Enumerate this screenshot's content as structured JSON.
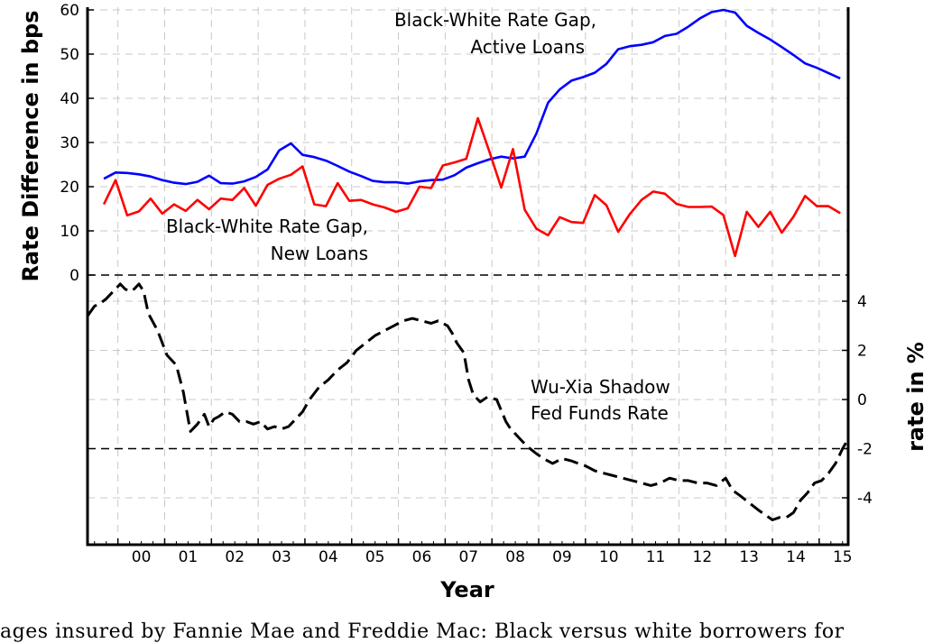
{
  "chart_data": {
    "type": "line",
    "xlabel": "Year",
    "x_tick_labels": [
      "00",
      "01",
      "02",
      "03",
      "04",
      "05",
      "06",
      "07",
      "08",
      "09",
      "10",
      "11",
      "12",
      "13",
      "14",
      "15"
    ],
    "xlim": [
      1999.35,
      2015.62
    ],
    "left_axis": {
      "label": "Rate Difference in bps",
      "ylim": [
        0,
        60
      ],
      "ticks": [
        0,
        10,
        20,
        30,
        40,
        50,
        60
      ]
    },
    "right_axis": {
      "label": "rate in %",
      "ylim": [
        -5.5,
        4.5
      ],
      "ticks": [
        4,
        2,
        0,
        -2,
        -4
      ]
    },
    "grid": true,
    "series": [
      {
        "name": "Black-White Rate Gap, Active Loans",
        "axis": "left",
        "color": "#0000ff",
        "x": [
          1999.7,
          1999.95,
          2000.2,
          2000.45,
          2000.7,
          2000.95,
          2001.2,
          2001.45,
          2001.7,
          2001.95,
          2002.2,
          2002.45,
          2002.7,
          2002.95,
          2003.2,
          2003.45,
          2003.7,
          2003.95,
          2004.2,
          2004.45,
          2004.7,
          2004.95,
          2005.2,
          2005.45,
          2005.7,
          2005.95,
          2006.2,
          2006.45,
          2006.7,
          2006.95,
          2007.2,
          2007.45,
          2007.7,
          2007.95,
          2008.2,
          2008.45,
          2008.7,
          2008.95,
          2009.2,
          2009.45,
          2009.7,
          2009.95,
          2010.2,
          2010.45,
          2010.7,
          2010.95,
          2011.2,
          2011.45,
          2011.7,
          2011.95,
          2012.2,
          2012.45,
          2012.7,
          2012.95,
          2013.2,
          2013.45,
          2013.7,
          2013.95,
          2014.2,
          2014.45,
          2014.7,
          2014.95,
          2015.2,
          2015.45
        ],
        "y": [
          21.8,
          23.2,
          23.1,
          22.8,
          22.3,
          21.5,
          20.9,
          20.6,
          21.1,
          22.5,
          20.8,
          20.7,
          21.2,
          22.2,
          23.9,
          28.2,
          29.8,
          27.2,
          26.7,
          25.9,
          24.7,
          23.4,
          22.4,
          21.3,
          21.0,
          21.0,
          20.7,
          21.2,
          21.5,
          21.6,
          22.6,
          24.3,
          25.3,
          26.2,
          26.8,
          26.4,
          26.8,
          32.0,
          39.0,
          42.0,
          44.0,
          44.8,
          45.8,
          47.8,
          51.1,
          51.8,
          52.1,
          52.7,
          54.1,
          54.6,
          56.2,
          58.1,
          59.5,
          60.0,
          59.4,
          56.4,
          54.8,
          53.3,
          51.6,
          49.8,
          47.9,
          46.9,
          45.7,
          44.5
        ]
      },
      {
        "name": "Black-White Rate Gap, New Loans",
        "axis": "left",
        "color": "#ff0000",
        "x": [
          1999.7,
          1999.95,
          2000.2,
          2000.45,
          2000.7,
          2000.95,
          2001.2,
          2001.45,
          2001.7,
          2001.95,
          2002.2,
          2002.45,
          2002.7,
          2002.95,
          2003.2,
          2003.45,
          2003.7,
          2003.95,
          2004.2,
          2004.45,
          2004.7,
          2004.95,
          2005.2,
          2005.45,
          2005.7,
          2005.95,
          2006.2,
          2006.45,
          2006.7,
          2006.95,
          2007.2,
          2007.45,
          2007.7,
          2007.95,
          2008.2,
          2008.45,
          2008.7,
          2008.95,
          2009.2,
          2009.45,
          2009.7,
          2009.95,
          2010.2,
          2010.45,
          2010.7,
          2010.95,
          2011.2,
          2011.45,
          2011.7,
          2011.95,
          2012.2,
          2012.45,
          2012.7,
          2012.95,
          2013.2,
          2013.45,
          2013.7,
          2013.95,
          2014.2,
          2014.45,
          2014.7,
          2014.95,
          2015.2,
          2015.45
        ],
        "y": [
          16.0,
          21.5,
          13.5,
          14.4,
          17.3,
          13.9,
          16.0,
          14.5,
          17.0,
          14.9,
          17.3,
          17.0,
          19.7,
          15.7,
          20.4,
          21.8,
          22.7,
          24.6,
          16.0,
          15.6,
          20.8,
          16.8,
          17.0,
          16.0,
          15.3,
          14.3,
          15.1,
          20.0,
          19.7,
          24.8,
          25.5,
          26.3,
          35.5,
          27.8,
          19.8,
          28.5,
          14.8,
          10.5,
          9.0,
          13.1,
          12.0,
          11.8,
          18.1,
          15.8,
          9.8,
          13.8,
          17.0,
          18.9,
          18.4,
          16.1,
          15.4,
          15.4,
          15.5,
          13.6,
          4.3,
          14.3,
          10.9,
          14.3,
          9.6,
          13.2,
          17.9,
          15.6,
          15.6,
          14.0
        ]
      },
      {
        "name": "Wu-Xia Shadow Fed Funds Rate",
        "axis": "right",
        "color": "#000000",
        "dashed": true,
        "x": [
          1999.35,
          1999.5,
          1999.62,
          1999.75,
          1999.85,
          1999.95,
          2000.05,
          2000.15,
          2000.25,
          2000.35,
          2000.45,
          2000.55,
          2000.65,
          2000.85,
          2001.05,
          2001.25,
          2001.4,
          2001.55,
          2001.7,
          2001.85,
          2001.95,
          2002.05,
          2002.15,
          2002.3,
          2002.45,
          2002.6,
          2002.75,
          2002.9,
          2003.05,
          2003.2,
          2003.35,
          2003.5,
          2003.65,
          2003.8,
          2003.95,
          2004.1,
          2004.3,
          2004.5,
          2004.7,
          2004.9,
          2005.1,
          2005.3,
          2005.5,
          2005.7,
          2005.9,
          2006.1,
          2006.3,
          2006.5,
          2006.7,
          2006.85,
          2006.95,
          2007.05,
          2007.15,
          2007.25,
          2007.4,
          2007.5,
          2007.6,
          2007.75,
          2007.9,
          2008.1,
          2008.3,
          2008.4,
          2008.5,
          2008.6,
          2008.75,
          2008.95,
          2009.1,
          2009.3,
          2009.5,
          2009.7,
          2009.85,
          2010.0,
          2010.2,
          2010.4,
          2010.6,
          2010.8,
          2011.0,
          2011.2,
          2011.4,
          2011.6,
          2011.8,
          2012.0,
          2012.2,
          2012.4,
          2012.6,
          2012.8,
          2013.0,
          2013.15,
          2013.3,
          2013.5,
          2013.7,
          2013.85,
          2014.0,
          2014.15,
          2014.3,
          2014.45,
          2014.6,
          2014.75,
          2014.9,
          2015.05,
          2015.2,
          2015.35,
          2015.5,
          2015.62
        ],
        "y": [
          3.4,
          3.8,
          3.9,
          4.1,
          4.3,
          4.5,
          4.7,
          4.5,
          4.4,
          4.5,
          4.7,
          4.4,
          3.5,
          2.8,
          1.8,
          1.4,
          0.3,
          -1.3,
          -1.0,
          -0.6,
          -1.1,
          -0.8,
          -0.7,
          -0.5,
          -0.6,
          -0.9,
          -0.9,
          -1.0,
          -0.9,
          -1.2,
          -1.1,
          -1.2,
          -1.1,
          -0.8,
          -0.5,
          0.0,
          0.5,
          0.8,
          1.2,
          1.5,
          2.0,
          2.3,
          2.6,
          2.8,
          3.0,
          3.2,
          3.3,
          3.2,
          3.1,
          3.2,
          3.1,
          3.0,
          2.7,
          2.3,
          1.9,
          0.8,
          0.2,
          -0.1,
          0.1,
          0.0,
          -0.9,
          -1.2,
          -1.4,
          -1.6,
          -1.9,
          -2.2,
          -2.4,
          -2.6,
          -2.4,
          -2.5,
          -2.6,
          -2.7,
          -2.9,
          -3.0,
          -3.1,
          -3.2,
          -3.3,
          -3.4,
          -3.5,
          -3.4,
          -3.2,
          -3.3,
          -3.3,
          -3.4,
          -3.4,
          -3.5,
          -3.2,
          -3.7,
          -3.9,
          -4.2,
          -4.5,
          -4.7,
          -4.9,
          -4.8,
          -4.8,
          -4.6,
          -4.1,
          -3.8,
          -3.4,
          -3.3,
          -3.0,
          -2.6,
          -2.0,
          -1.6
        ]
      }
    ],
    "reference_lines": [
      {
        "axis": "left",
        "value": 0,
        "style": "dashed"
      },
      {
        "axis": "right",
        "value": -2,
        "style": "dashed"
      }
    ],
    "annotations": [
      {
        "lines": [
          "Black-White Rate Gap,",
          "Active Loans"
        ]
      },
      {
        "lines": [
          "Black-White Rate Gap,",
          "New Loans"
        ]
      },
      {
        "lines": [
          "Wu-Xia Shadow",
          "Fed Funds Rate"
        ]
      }
    ]
  },
  "caption": "ages insured by Fannie Mae and Freddie Mac: Black versus white borrowers for"
}
